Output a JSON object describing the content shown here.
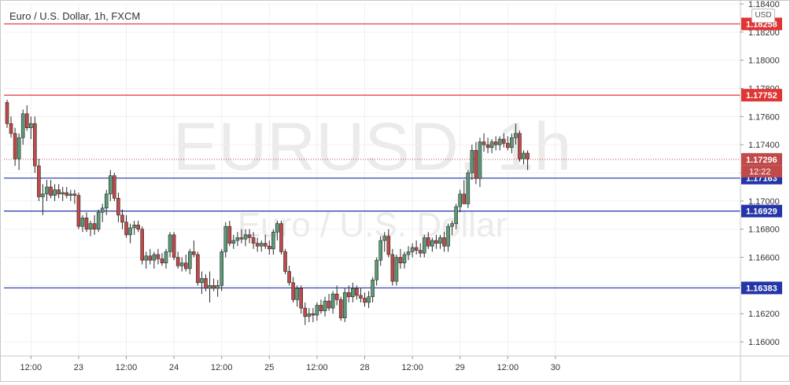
{
  "header": {
    "title": "Euro / U.S. Dollar, 1h, FXCM",
    "currency": "USD"
  },
  "watermark": {
    "symbol": "EURUSD, 1h",
    "name": "Euro / U.S. Dollar"
  },
  "colors": {
    "up": "#5b9a77",
    "down": "#c04a49",
    "resistance": "#e03535",
    "support": "#2535a8"
  },
  "chart_data": {
    "type": "candlestick",
    "ylim": [
      1.159,
      1.184
    ],
    "y_ticks": [
      "1.18400",
      "1.18200",
      "1.18000",
      "1.17800",
      "1.17600",
      "1.17400",
      "1.17200",
      "1.17000",
      "1.16800",
      "1.16600",
      "1.16400",
      "1.16200",
      "1.16000"
    ],
    "x_ticks": [
      {
        "label": "12:00",
        "i": 6
      },
      {
        "label": "23",
        "i": 18
      },
      {
        "label": "12:00",
        "i": 30
      },
      {
        "label": "24",
        "i": 42
      },
      {
        "label": "12:00",
        "i": 54
      },
      {
        "label": "25",
        "i": 66
      },
      {
        "label": "12:00",
        "i": 78
      },
      {
        "label": "28",
        "i": 90
      },
      {
        "label": "12:00",
        "i": 102
      },
      {
        "label": "29",
        "i": 114
      },
      {
        "label": "12:00",
        "i": 126
      },
      {
        "label": "30",
        "i": 138
      }
    ],
    "hlines": [
      {
        "value": 1.18258,
        "label": "1.18258",
        "kind": "resistance"
      },
      {
        "value": 1.17752,
        "label": "1.17752",
        "kind": "resistance"
      },
      {
        "value": 1.17163,
        "label": "1.17163",
        "kind": "support"
      },
      {
        "value": 1.16929,
        "label": "1.16929",
        "kind": "support"
      },
      {
        "value": 1.16383,
        "label": "1.16383",
        "kind": "support"
      }
    ],
    "last_price": {
      "value": 1.17296,
      "label": "1.17296",
      "countdown": "12:22"
    },
    "candles": [
      [
        1.177,
        1.1772,
        1.1752,
        1.1755
      ],
      [
        1.1755,
        1.176,
        1.1745,
        1.1748
      ],
      [
        1.1748,
        1.1752,
        1.1725,
        1.173
      ],
      [
        1.173,
        1.1748,
        1.1722,
        1.1745
      ],
      [
        1.1745,
        1.1765,
        1.174,
        1.1762
      ],
      [
        1.1762,
        1.1768,
        1.175,
        1.1752
      ],
      [
        1.1752,
        1.176,
        1.1744,
        1.1755
      ],
      [
        1.1755,
        1.176,
        1.172,
        1.1725
      ],
      [
        1.1725,
        1.173,
        1.17,
        1.1703
      ],
      [
        1.1703,
        1.1712,
        1.169,
        1.1705
      ],
      [
        1.1705,
        1.1715,
        1.17,
        1.171
      ],
      [
        1.171,
        1.1715,
        1.1702,
        1.1704
      ],
      [
        1.1704,
        1.1712,
        1.17,
        1.1708
      ],
      [
        1.1708,
        1.1712,
        1.1702,
        1.1705
      ],
      [
        1.1705,
        1.171,
        1.17,
        1.1706
      ],
      [
        1.1706,
        1.171,
        1.1702,
        1.1704
      ],
      [
        1.1704,
        1.1708,
        1.17,
        1.1705
      ],
      [
        1.1705,
        1.1708,
        1.1698,
        1.1704
      ],
      [
        1.1704,
        1.1706,
        1.168,
        1.1682
      ],
      [
        1.1682,
        1.169,
        1.1678,
        1.1688
      ],
      [
        1.1688,
        1.1692,
        1.1678,
        1.168
      ],
      [
        1.168,
        1.1686,
        1.1675,
        1.1684
      ],
      [
        1.1684,
        1.169,
        1.1676,
        1.168
      ],
      [
        1.168,
        1.1694,
        1.1678,
        1.1692
      ],
      [
        1.1692,
        1.1698,
        1.1685,
        1.1695
      ],
      [
        1.1695,
        1.1708,
        1.169,
        1.1705
      ],
      [
        1.1705,
        1.1722,
        1.17,
        1.1718
      ],
      [
        1.1718,
        1.172,
        1.17,
        1.1702
      ],
      [
        1.1702,
        1.1706,
        1.1685,
        1.169
      ],
      [
        1.169,
        1.1694,
        1.168,
        1.1685
      ],
      [
        1.1685,
        1.169,
        1.1674,
        1.1676
      ],
      [
        1.1676,
        1.1684,
        1.167,
        1.1681
      ],
      [
        1.1681,
        1.1686,
        1.1676,
        1.1683
      ],
      [
        1.1683,
        1.1686,
        1.1678,
        1.168
      ],
      [
        1.168,
        1.1682,
        1.1655,
        1.1658
      ],
      [
        1.1658,
        1.1664,
        1.1652,
        1.1661
      ],
      [
        1.1661,
        1.1666,
        1.1655,
        1.1658
      ],
      [
        1.1658,
        1.1664,
        1.1652,
        1.1662
      ],
      [
        1.1662,
        1.1666,
        1.1655,
        1.1659
      ],
      [
        1.1659,
        1.1663,
        1.1654,
        1.1656
      ],
      [
        1.1656,
        1.1666,
        1.1652,
        1.1664
      ],
      [
        1.1664,
        1.1678,
        1.166,
        1.1676
      ],
      [
        1.1676,
        1.1678,
        1.1658,
        1.166
      ],
      [
        1.166,
        1.1664,
        1.1652,
        1.1654
      ],
      [
        1.1654,
        1.166,
        1.165,
        1.1656
      ],
      [
        1.1656,
        1.1662,
        1.165,
        1.1652
      ],
      [
        1.1652,
        1.1666,
        1.1648,
        1.1664
      ],
      [
        1.1664,
        1.1672,
        1.166,
        1.1662
      ],
      [
        1.1662,
        1.1664,
        1.164,
        1.1642
      ],
      [
        1.1642,
        1.165,
        1.1634,
        1.1645
      ],
      [
        1.1645,
        1.1648,
        1.1636,
        1.1638
      ],
      [
        1.1638,
        1.165,
        1.1628,
        1.164
      ],
      [
        1.164,
        1.1645,
        1.1636,
        1.1638
      ],
      [
        1.1638,
        1.1644,
        1.1632,
        1.164
      ],
      [
        1.164,
        1.1666,
        1.1636,
        1.1664
      ],
      [
        1.1664,
        1.1685,
        1.166,
        1.1682
      ],
      [
        1.1682,
        1.1686,
        1.1668,
        1.167
      ],
      [
        1.167,
        1.1676,
        1.1666,
        1.1672
      ],
      [
        1.1672,
        1.1678,
        1.1668,
        1.1674
      ],
      [
        1.1674,
        1.168,
        1.167,
        1.1673
      ],
      [
        1.1673,
        1.168,
        1.1668,
        1.1676
      ],
      [
        1.1676,
        1.168,
        1.167,
        1.1674
      ],
      [
        1.1674,
        1.1678,
        1.1666,
        1.167
      ],
      [
        1.167,
        1.1674,
        1.1664,
        1.1668
      ],
      [
        1.1668,
        1.1672,
        1.1664,
        1.167
      ],
      [
        1.167,
        1.1676,
        1.1666,
        1.1668
      ],
      [
        1.1668,
        1.1672,
        1.1662,
        1.1666
      ],
      [
        1.1666,
        1.168,
        1.1662,
        1.1678
      ],
      [
        1.1678,
        1.1686,
        1.1672,
        1.1684
      ],
      [
        1.1684,
        1.1686,
        1.1662,
        1.1664
      ],
      [
        1.1664,
        1.1666,
        1.1648,
        1.165
      ],
      [
        1.165,
        1.1654,
        1.164,
        1.1642
      ],
      [
        1.1642,
        1.1646,
        1.1628,
        1.163
      ],
      [
        1.163,
        1.164,
        1.1625,
        1.1638
      ],
      [
        1.1638,
        1.164,
        1.162,
        1.1624
      ],
      [
        1.1624,
        1.1628,
        1.1612,
        1.1618
      ],
      [
        1.1618,
        1.1624,
        1.1614,
        1.162
      ],
      [
        1.162,
        1.1624,
        1.1614,
        1.1619
      ],
      [
        1.1619,
        1.1628,
        1.1615,
        1.1626
      ],
      [
        1.1626,
        1.163,
        1.162,
        1.1622
      ],
      [
        1.1622,
        1.1632,
        1.1618,
        1.1629
      ],
      [
        1.1629,
        1.1634,
        1.1622,
        1.1624
      ],
      [
        1.1624,
        1.1636,
        1.162,
        1.1634
      ],
      [
        1.1634,
        1.164,
        1.1626,
        1.163
      ],
      [
        1.163,
        1.1632,
        1.1615,
        1.1617
      ],
      [
        1.1617,
        1.1638,
        1.1614,
        1.1635
      ],
      [
        1.1635,
        1.164,
        1.1628,
        1.1632
      ],
      [
        1.1632,
        1.1642,
        1.1628,
        1.1638
      ],
      [
        1.1638,
        1.164,
        1.163,
        1.1633
      ],
      [
        1.1633,
        1.1638,
        1.1628,
        1.1631
      ],
      [
        1.1631,
        1.1635,
        1.1625,
        1.1628
      ],
      [
        1.1628,
        1.1636,
        1.1624,
        1.1632
      ],
      [
        1.1632,
        1.1646,
        1.1628,
        1.1644
      ],
      [
        1.1644,
        1.166,
        1.164,
        1.1658
      ],
      [
        1.1658,
        1.1675,
        1.1654,
        1.1672
      ],
      [
        1.1672,
        1.1678,
        1.1664,
        1.1675
      ],
      [
        1.1675,
        1.168,
        1.166,
        1.1662
      ],
      [
        1.1662,
        1.1666,
        1.164,
        1.1643
      ],
      [
        1.1643,
        1.1662,
        1.164,
        1.166
      ],
      [
        1.166,
        1.1666,
        1.1652,
        1.1656
      ],
      [
        1.1656,
        1.1664,
        1.1652,
        1.1662
      ],
      [
        1.1662,
        1.1668,
        1.1658,
        1.1664
      ],
      [
        1.1664,
        1.167,
        1.166,
        1.1667
      ],
      [
        1.1667,
        1.1672,
        1.1662,
        1.1665
      ],
      [
        1.1665,
        1.167,
        1.166,
        1.1663
      ],
      [
        1.1663,
        1.1676,
        1.166,
        1.1674
      ],
      [
        1.1674,
        1.1678,
        1.1666,
        1.1668
      ],
      [
        1.1668,
        1.1674,
        1.1664,
        1.1672
      ],
      [
        1.1672,
        1.1676,
        1.1666,
        1.167
      ],
      [
        1.167,
        1.1676,
        1.1666,
        1.1674
      ],
      [
        1.1674,
        1.1678,
        1.1664,
        1.1668
      ],
      [
        1.1668,
        1.1684,
        1.1664,
        1.1682
      ],
      [
        1.1682,
        1.1686,
        1.1676,
        1.1684
      ],
      [
        1.1684,
        1.1698,
        1.168,
        1.1696
      ],
      [
        1.1696,
        1.1708,
        1.1692,
        1.1705
      ],
      [
        1.1705,
        1.1715,
        1.17,
        1.1698
      ],
      [
        1.1698,
        1.1722,
        1.1695,
        1.172
      ],
      [
        1.172,
        1.174,
        1.1715,
        1.1736
      ],
      [
        1.1736,
        1.1742,
        1.1712,
        1.1716
      ],
      [
        1.1716,
        1.1745,
        1.171,
        1.1742
      ],
      [
        1.1742,
        1.1748,
        1.1735,
        1.174
      ],
      [
        1.174,
        1.1745,
        1.1734,
        1.1738
      ],
      [
        1.1738,
        1.1744,
        1.1734,
        1.1742
      ],
      [
        1.1742,
        1.1746,
        1.1736,
        1.174
      ],
      [
        1.174,
        1.1746,
        1.1736,
        1.1744
      ],
      [
        1.1744,
        1.1748,
        1.1738,
        1.1741
      ],
      [
        1.1741,
        1.1746,
        1.1736,
        1.1738
      ],
      [
        1.1738,
        1.1748,
        1.1734,
        1.1745
      ],
      [
        1.1745,
        1.1755,
        1.174,
        1.1748
      ],
      [
        1.1748,
        1.175,
        1.1728,
        1.173
      ],
      [
        1.173,
        1.1736,
        1.1726,
        1.1734
      ],
      [
        1.1734,
        1.1736,
        1.1722,
        1.173
      ]
    ]
  }
}
